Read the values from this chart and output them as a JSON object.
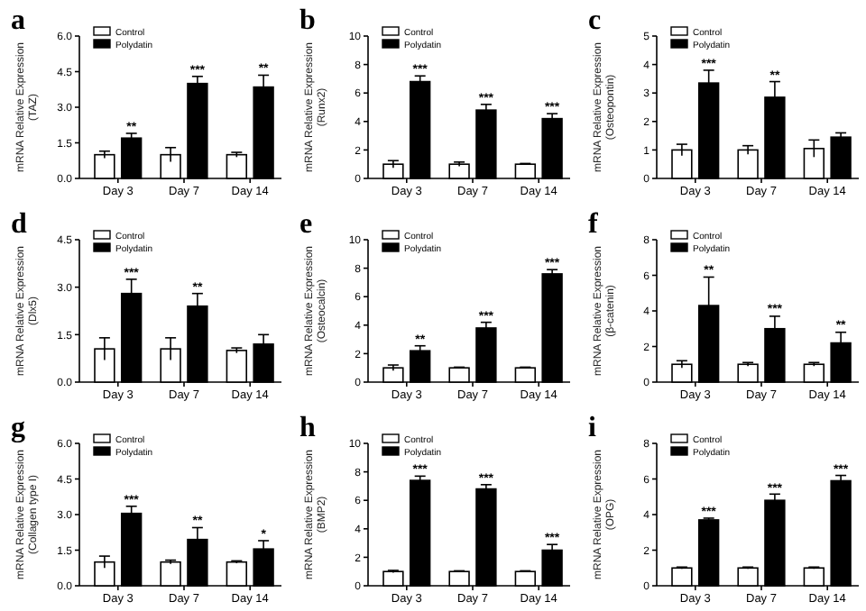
{
  "chart_data": [
    {
      "type": "bar",
      "title": "a",
      "ylabel": "mRNA Relative Expression\n(TAZ)",
      "categories": [
        "Day 3",
        "Day 7",
        "Day 14"
      ],
      "legend": "top left",
      "ylim": [
        0,
        6
      ],
      "yticks": [
        {
          "value": 0,
          "label": "0.0"
        },
        {
          "value": 1.5,
          "label": "1.5"
        },
        {
          "value": 3,
          "label": "3.0"
        },
        {
          "value": 4.5,
          "label": "4.5"
        },
        {
          "value": 6,
          "label": "6.0"
        }
      ],
      "series": [
        {
          "name": "Control",
          "color": "#ffffff",
          "values": [
            1.0,
            1.0,
            1.0
          ],
          "errors": [
            0.15,
            0.3,
            0.1
          ]
        },
        {
          "name": "Polydatin",
          "color": "#000000",
          "values": [
            1.7,
            4.0,
            3.85
          ],
          "errors": [
            0.2,
            0.3,
            0.5
          ]
        }
      ],
      "annotations": [
        {
          "text": "**",
          "x": "Day 3",
          "y": 1.9
        },
        {
          "text": "***",
          "x": "Day 7",
          "y": 4.3
        },
        {
          "text": "**",
          "x": "Day 14",
          "y": 4.35
        }
      ]
    },
    {
      "type": "bar",
      "title": "b",
      "ylabel": "mRNA Relative Expression\n(Runx2)",
      "categories": [
        "Day 3",
        "Day 7",
        "Day 14"
      ],
      "legend": "top left",
      "ylim": [
        0,
        10
      ],
      "yticks": [
        0,
        2,
        4,
        6,
        8,
        10
      ],
      "series": [
        {
          "name": "Control",
          "color": "#ffffff",
          "values": [
            1.0,
            1.0,
            1.0
          ],
          "errors": [
            0.25,
            0.15,
            0.05
          ]
        },
        {
          "name": "Polydatin",
          "color": "#000000",
          "values": [
            6.8,
            4.8,
            4.2
          ],
          "errors": [
            0.4,
            0.4,
            0.35
          ]
        }
      ],
      "annotations": [
        {
          "text": "***",
          "x": "Day 3",
          "y": 7.2
        },
        {
          "text": "***",
          "x": "Day 7",
          "y": 5.2
        },
        {
          "text": "***",
          "x": "Day 14",
          "y": 4.55
        }
      ]
    },
    {
      "type": "bar",
      "title": "c",
      "ylabel": "mRNA Relative Expression\n(Osteopontin)",
      "categories": [
        "Day 3",
        "Day 7",
        "Day 14"
      ],
      "legend": "top left",
      "ylim": [
        0,
        5
      ],
      "yticks": [
        0,
        1,
        2,
        3,
        4,
        5
      ],
      "series": [
        {
          "name": "Control",
          "color": "#ffffff",
          "values": [
            1.0,
            1.0,
            1.05
          ],
          "errors": [
            0.2,
            0.15,
            0.3
          ]
        },
        {
          "name": "Polydatin",
          "color": "#000000",
          "values": [
            3.35,
            2.85,
            1.45
          ],
          "errors": [
            0.45,
            0.55,
            0.15
          ]
        }
      ],
      "annotations": [
        {
          "text": "***",
          "x": "Day 3",
          "y": 3.8
        },
        {
          "text": "**",
          "x": "Day 7",
          "y": 3.4
        }
      ]
    },
    {
      "type": "bar",
      "title": "d",
      "ylabel": "mRNA Relative Expression\n(Dlx5)",
      "categories": [
        "Day 3",
        "Day 7",
        "Day 14"
      ],
      "legend": "top left",
      "ylim": [
        0,
        4.5
      ],
      "yticks": [
        {
          "value": 0,
          "label": "0.0"
        },
        {
          "value": 1.5,
          "label": "1.5"
        },
        {
          "value": 3,
          "label": "3.0"
        },
        {
          "value": 4.5,
          "label": "4.5"
        }
      ],
      "series": [
        {
          "name": "Control",
          "color": "#ffffff",
          "values": [
            1.05,
            1.05,
            1.0
          ],
          "errors": [
            0.35,
            0.35,
            0.08
          ]
        },
        {
          "name": "Polydatin",
          "color": "#000000",
          "values": [
            2.8,
            2.4,
            1.2
          ],
          "errors": [
            0.45,
            0.4,
            0.3
          ]
        }
      ],
      "annotations": [
        {
          "text": "***",
          "x": "Day 3",
          "y": 3.25
        },
        {
          "text": "**",
          "x": "Day 7",
          "y": 2.8
        }
      ]
    },
    {
      "type": "bar",
      "title": "e",
      "ylabel": "mRNA Relative Expression\n(Osteocalcin)",
      "categories": [
        "Day 3",
        "Day 7",
        "Day 14"
      ],
      "legend": "top left",
      "ylim": [
        0,
        10
      ],
      "yticks": [
        0,
        2,
        4,
        6,
        8,
        10
      ],
      "series": [
        {
          "name": "Control",
          "color": "#ffffff",
          "values": [
            1.0,
            1.0,
            1.0
          ],
          "errors": [
            0.2,
            0.05,
            0.05
          ]
        },
        {
          "name": "Polydatin",
          "color": "#000000",
          "values": [
            2.2,
            3.8,
            7.6
          ],
          "errors": [
            0.35,
            0.4,
            0.3
          ]
        }
      ],
      "annotations": [
        {
          "text": "**",
          "x": "Day 3",
          "y": 2.55
        },
        {
          "text": "***",
          "x": "Day 7",
          "y": 4.2
        },
        {
          "text": "***",
          "x": "Day 14",
          "y": 7.9
        }
      ]
    },
    {
      "type": "bar",
      "title": "f",
      "ylabel": "mRNA Relative Expression\n(β-catenin)",
      "categories": [
        "Day 3",
        "Day 7",
        "Day 14"
      ],
      "legend": "top left",
      "ylim": [
        0,
        8
      ],
      "yticks": [
        0,
        2,
        4,
        6,
        8
      ],
      "series": [
        {
          "name": "Control",
          "color": "#ffffff",
          "values": [
            1.0,
            1.0,
            1.0
          ],
          "errors": [
            0.2,
            0.1,
            0.1
          ]
        },
        {
          "name": "Polydatin",
          "color": "#000000",
          "values": [
            4.3,
            3.0,
            2.2
          ],
          "errors": [
            1.6,
            0.7,
            0.6
          ]
        }
      ],
      "annotations": [
        {
          "text": "**",
          "x": "Day 3",
          "y": 5.9
        },
        {
          "text": "***",
          "x": "Day 7",
          "y": 3.75
        },
        {
          "text": "**",
          "x": "Day 14",
          "y": 2.85
        }
      ]
    },
    {
      "type": "bar",
      "title": "g",
      "ylabel": "mRNA Relative Expression\n(Collagen type I)",
      "categories": [
        "Day 3",
        "Day 7",
        "Day 14"
      ],
      "legend": "top left",
      "ylim": [
        0,
        6
      ],
      "yticks": [
        {
          "value": 0,
          "label": "0.0"
        },
        {
          "value": 1.5,
          "label": "1.5"
        },
        {
          "value": 3,
          "label": "3.0"
        },
        {
          "value": 4.5,
          "label": "4.5"
        },
        {
          "value": 6,
          "label": "6.0"
        }
      ],
      "series": [
        {
          "name": "Control",
          "color": "#ffffff",
          "values": [
            1.0,
            1.0,
            1.0
          ],
          "errors": [
            0.25,
            0.08,
            0.05
          ]
        },
        {
          "name": "Polydatin",
          "color": "#000000",
          "values": [
            3.05,
            1.95,
            1.55
          ],
          "errors": [
            0.3,
            0.5,
            0.35
          ]
        }
      ],
      "annotations": [
        {
          "text": "***",
          "x": "Day 3",
          "y": 3.35
        },
        {
          "text": "**",
          "x": "Day 7",
          "y": 2.45
        },
        {
          "text": "*",
          "x": "Day 14",
          "y": 1.9
        }
      ]
    },
    {
      "type": "bar",
      "title": "h",
      "ylabel": "mRNA Relative Expression\n(BMP2)",
      "categories": [
        "Day 3",
        "Day 7",
        "Day 14"
      ],
      "legend": "top left",
      "ylim": [
        0,
        10
      ],
      "yticks": [
        0,
        2,
        4,
        6,
        8,
        10
      ],
      "series": [
        {
          "name": "Control",
          "color": "#ffffff",
          "values": [
            1.0,
            1.0,
            1.0
          ],
          "errors": [
            0.08,
            0.05,
            0.05
          ]
        },
        {
          "name": "Polydatin",
          "color": "#000000",
          "values": [
            7.4,
            6.8,
            2.5
          ],
          "errors": [
            0.3,
            0.3,
            0.4
          ]
        }
      ],
      "annotations": [
        {
          "text": "***",
          "x": "Day 3",
          "y": 7.7
        },
        {
          "text": "***",
          "x": "Day 7",
          "y": 7.1
        },
        {
          "text": "***",
          "x": "Day 14",
          "y": 2.9
        }
      ]
    },
    {
      "type": "bar",
      "title": "i",
      "ylabel": "mRNA Relative Expression\n(OPG)",
      "categories": [
        "Day 3",
        "Day 7",
        "Day 14"
      ],
      "legend": "top left",
      "ylim": [
        0,
        8
      ],
      "yticks": [
        0,
        2,
        4,
        6,
        8
      ],
      "series": [
        {
          "name": "Control",
          "color": "#ffffff",
          "values": [
            1.0,
            1.0,
            1.0
          ],
          "errors": [
            0.05,
            0.05,
            0.05
          ]
        },
        {
          "name": "Polydatin",
          "color": "#000000",
          "values": [
            3.7,
            4.8,
            5.9
          ],
          "errors": [
            0.1,
            0.35,
            0.3
          ]
        }
      ],
      "annotations": [
        {
          "text": "***",
          "x": "Day 3",
          "y": 3.8
        },
        {
          "text": "***",
          "x": "Day 7",
          "y": 5.1
        },
        {
          "text": "***",
          "x": "Day 14",
          "y": 6.2
        }
      ]
    }
  ]
}
